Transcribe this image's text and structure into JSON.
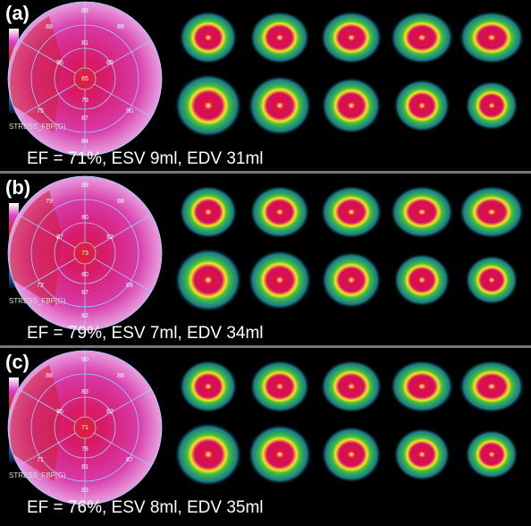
{
  "panels": [
    {
      "label": "(a)",
      "map_title": "STRESS_FBP(G)",
      "summary": "EF = 71%, ESV 9ml, EDV 31ml",
      "segments": [
        "89",
        "88",
        "89",
        "81",
        "86",
        "65",
        "85",
        "79",
        "75",
        "90",
        "87",
        "84"
      ]
    },
    {
      "label": "(b)",
      "map_title": "STRESS_FBP(G)",
      "summary": "EF = 79%, ESV 7ml, EDV 34ml",
      "segments": [
        "89",
        "79",
        "88",
        "80",
        "87",
        "73",
        "82",
        "80",
        "72",
        "88",
        "87",
        "82"
      ]
    },
    {
      "label": "(c)",
      "map_title": "STRESS_FBP(G)",
      "summary": "EF = 76%, ESV 8ml, EDV 35ml",
      "segments": [
        "90",
        "88",
        "88",
        "83",
        "86",
        "71",
        "82",
        "78",
        "71",
        "87",
        "81",
        "83"
      ]
    }
  ]
}
